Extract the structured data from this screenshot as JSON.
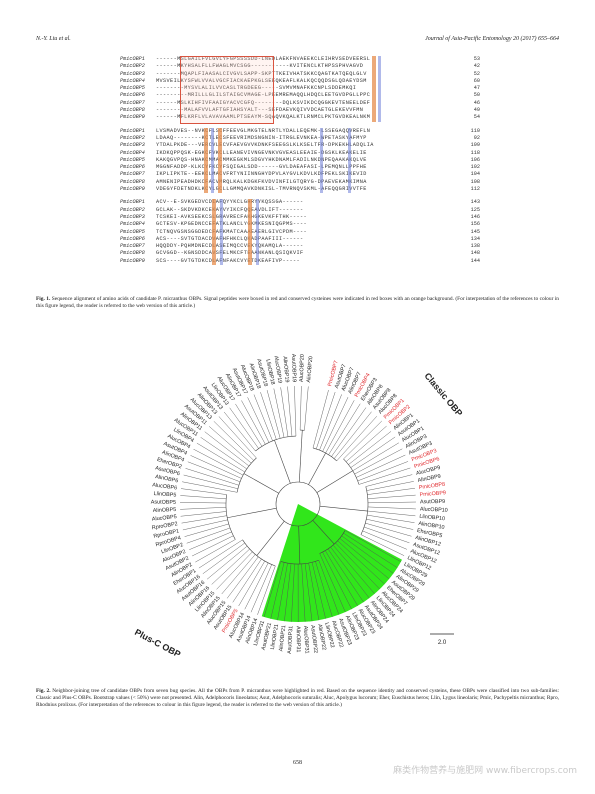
{
  "header": {
    "left": "N.-Y. Liu et al.",
    "right": "Journal of Asia-Pacific Entomology 20 (2017) 655–664"
  },
  "alignment": {
    "blocks": [
      {
        "rows": [
          {
            "name": "PmicOBP1",
            "seq": "------MSLGAILFVLGVLYFGPSSSSDD-LNEDLAEKFNVAEEKCLEIHRVSEDVEERSL",
            "count": "53"
          },
          {
            "name": "PmicOBP2",
            "seq": "------MKYHSALFLLFWAGLMVCSGG-----------KVITENCLKTHPSSPHVAGVD",
            "count": "42"
          },
          {
            "name": "PmicOBP3",
            "seq": "-------MQAPLFIAASALCIVGVLSAPP-SKPTTKEIVHATSKKCQAGTKATQEQLGLV",
            "count": "52"
          },
          {
            "name": "PmicOBP4",
            "seq": "MVSVEILKYSFWLVVALVGCFIACKAEPKGLSEEQKEAFLKALKQCQQDSGLQDAEYDSM",
            "count": "60"
          },
          {
            "name": "PmicOBP5",
            "seq": "--------MYSVLALILVVCASLTRGDEEG-----SVMVMNAFKKCNPLSDDEMKQI",
            "count": "47"
          },
          {
            "name": "PmicOBP6",
            "seq": "---------MRILLLGLILSTAIGCVMAGE-LPEEMREMAQQLHDQCLEETGVDPGLLPPC",
            "count": "50"
          },
          {
            "name": "PmicOBP7",
            "seq": "------MSLKIHFIVFAAIGYACVCGFQ--------DQLKSVIKDCQGGKEVTENEELDEF",
            "count": "46"
          },
          {
            "name": "PmicOBP8",
            "seq": "--------MALAFVVLAFTGFIAHSYALT---SEFDAEVKQIVVDCAETGLEKEVVFMN",
            "count": "49"
          },
          {
            "name": "PmicOBP9",
            "seq": "------MFLKRFLVLAVAVAAMLPTSEAYM-SQAQVKQALKTLRNMCLPKTGVDKEALNKM",
            "count": "54"
          }
        ]
      },
      {
        "rows": [
          {
            "name": "PmicOBP1",
            "seq": "LVSMADVES--NVKCFLSCFFEEVGLMKGTELNRTLYDALLEQEMK-LSSEGAQQVREFLN",
            "count": "110"
          },
          {
            "name": "PmicOBP2",
            "seq": "LDAAQ--------KCTLECSFEEVRIMDSNGNIN-ITRGLEVNKEA-WPETASKYAFMYP",
            "count": "92"
          },
          {
            "name": "PmicOBP3",
            "seq": "YTDALPKDE---VERCVLECVFAEVGVVKDNKFSEEGSLKLKSELTFR-DPKEKHLADQLIA",
            "count": "109"
          },
          {
            "name": "PmicOBP4",
            "seq": "IKDKQPPQSK-EGKCFVKCLLEANEVIVNGEVNKVGVEASLEEAIE-DGSKLKEAKELIE",
            "count": "118"
          },
          {
            "name": "PmicOBP5",
            "seq": "KAKQGVPQS-HNAKCMMACMMKEGKMLSDGVYHKDNAMLFADILNKDNPEQAAKAKQLVE",
            "count": "106"
          },
          {
            "name": "PmicOBP6",
            "seq": "MGGNFADDP-KLKCYFKCYFSQIGALSDD------GVLDAEAFASI-LPEMQNLLPPFHE",
            "count": "102"
          },
          {
            "name": "PmicOBP7",
            "seq": "IKPLIPKTE--EEKCLMACVFRTYNIINNGHYDPVLAYGVLKDVLKDFPEKLSKIKEVID",
            "count": "104"
          },
          {
            "name": "PmicOBP8",
            "seq": "AMNENIPEADHDKCFACVMRQLKALKDGKFKVDVINFILGTQRYG-DPAEVEKAMKIMNA",
            "count": "108"
          },
          {
            "name": "PmicOBP9",
            "seq": "VDEGYFDETNDKLKCYLGCLLGMMQAVKDNKISL-TMVRNQVSKML-AFEQQGRIVVTFE",
            "count": "112"
          }
        ]
      },
      {
        "rows": [
          {
            "name": "PmicOBP1",
            "seq": "ACV--E-SVKGEDVCDIAFQYYKCLGHRYYKQSSGA------",
            "count": "143"
          },
          {
            "name": "PmicOBP2",
            "seq": "GCLAK--SKDVKDKCEKAYVYIKCFQQEAVDLIFT-------",
            "count": "125"
          },
          {
            "name": "PmicOBP3",
            "seq": "TCSKEI-AVKSEEKCSLGRAVRECFAKHGKEVKFFTHK-----",
            "count": "146"
          },
          {
            "name": "PmicOBP4",
            "seq": "GCTESV-KPGEDNCCEFATKLANCLYGKMKESNIQGPMS----",
            "count": "156"
          },
          {
            "name": "PmicOBP5",
            "seq": "TCTNQVGSNSGGDEDCFAFKMATCAAAEAERLGIVCPDM----",
            "count": "145"
          },
          {
            "name": "PmicOBP6",
            "seq": "ACS----SVTGTDACDVAFHFHKCLQKADPAAFIII------",
            "count": "134"
          },
          {
            "name": "PmicOBP7",
            "seq": "HQQDDY-PQHMDNECDLASEIMQCCVEKYQKAMQLA------",
            "count": "138"
          },
          {
            "name": "PmicOBP8",
            "seq": "GCVGGD--KGNSDDCAVSFELMKCFTEAANKANLQSIQKVIF",
            "count": "148"
          },
          {
            "name": "PmicOBP9",
            "seq": "SCS----GVTGTDKCDLAFNFAKCVYETDKEAFIVP-----",
            "count": "144"
          }
        ]
      }
    ]
  },
  "captions": {
    "fig1_label": "Fig. 1.",
    "fig1_text": "Sequence alignment of amino acids of candidate P. micranthus OBPs. Signal peptides were boxed in red and conserved cysteines were indicated in red boxes with an orange background. (For interpretation of the references to colour in this figure legend, the reader is referred to the web version of this article.)",
    "fig2_label": "Fig. 2.",
    "fig2_text": "Neighbor-joining tree of candidate OBPs from seven bug species. All the OBPs from P. micranthus were highlighted in red. Based on the sequence identity and conserved cysteins, these OBPs were classified into two sub-families: Classic and Plus-C OBPs. Bootstrap values (< 50%) were not presented. Alin, Adelphocoris lineolatus; Asut, Adelphocoris suturalis; Aluc, Apolygus lucorum; Eher, Euschistus heros; Llin, Lygus lineolaris; Pmic, Pachypeltis micranthus; Rpro, Rhodnius prolixus. (For interpretation of the references to colour in this figure legend, the reader is referred to the web version of this article.)"
  },
  "tree": {
    "classic_label": "Classic OBP",
    "plusc_label": "Plus-C OBP",
    "scale_label": "2.0",
    "highlight_color": "#e0262a",
    "plusc_fill": "#31e61b",
    "tips": [
      "PmicOBP7",
      "AsutOBP7",
      "AlucOBP7",
      "AlinOBP7",
      "PmicOBP4",
      "EherOBP3",
      "AlinOBP8",
      "AsutOBP8",
      "AlucOBP8",
      "PmicOBP1",
      "PmicOBP2",
      "AlinOBP1",
      "AsutOBP1",
      "AlucOBP1",
      "AlinOBP3",
      "AsutOBP3",
      "PmicOBP3",
      "PmicOBP6",
      "AlucOBP9",
      "AlinOBP9",
      "PmicOBP8",
      "PmicOBP9",
      "AsutOBP9",
      "AlucOBP10",
      "LlinOBP10",
      "AlinOBP10",
      "EherOBP5",
      "AlinOBP12",
      "AsutOBP12",
      "AlucOBP12",
      "LlinOBP12",
      "LlinOBP29",
      "AlucOBP29",
      "AlinOBP29",
      "AsutOBP29",
      "EherOBP7",
      "AlucOBP24",
      "LlinOBP24",
      "AlinOBP24",
      "AsutOBP24",
      "AlucOBP23",
      "LlinOBP23",
      "AlinOBP23",
      "AsutOBP23",
      "AlucOBP22",
      "LlinOBP22",
      "AlinOBP22",
      "AsutOBP22",
      "AlucOBP31",
      "AlinOBP31",
      "AsutOBP31",
      "AlinOBP21",
      "LlinOBP21",
      "AsutOBP21",
      "LlinOBP31",
      "AlinOBP14",
      "AsutOBP14",
      "AlucOBP14",
      "PmicOBP5",
      "AsutOBP15",
      "AlucOBP15",
      "AlinOBP15",
      "LlinOBP15",
      "AlinOBP16",
      "AsutOBP16",
      "AlucOBP16",
      "EherOBP1",
      "AlinOBP2",
      "AsutOBP2",
      "AlucOBP2",
      "LlinOBP2",
      "RproOBP4",
      "RproOBP1",
      "RproOBP2",
      "AlucOBP5",
      "AlinOBP5",
      "AsutOBP5",
      "LlinOBP5",
      "AlucOBP6",
      "AlinOBP6",
      "AsutOBP6",
      "EherOBP2",
      "AlinOBP4",
      "AsutOBP4",
      "AlucOBP4",
      "LlinOBP4",
      "AlucOBP11",
      "AlinOBP11",
      "AsutOBP11",
      "AlucOBP13",
      "AlinOBP13",
      "AsutOBP13",
      "LlinOBP13",
      "AlucOBP17",
      "AlinOBP17",
      "AsutOBP17",
      "AlucOBP18",
      "AlinOBP18",
      "AsutOBP18",
      "LlinOBP18",
      "AlucOBP19",
      "AlinOBP19",
      "AsutOBP19",
      "AlucOBP20",
      "AlinOBP20"
    ]
  },
  "page": {
    "number": "658",
    "watermark": "麻类作物营养与施肥网 www.fibercrops.com"
  }
}
